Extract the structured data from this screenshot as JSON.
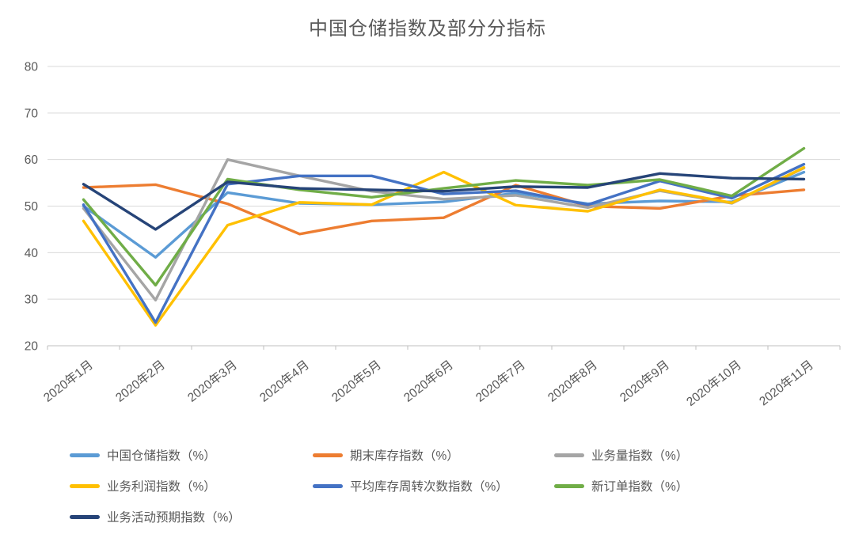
{
  "chart_data": {
    "type": "line",
    "title": "中国仓储指数及部分分指标",
    "categories": [
      "2020年1月",
      "2020年2月",
      "2020年3月",
      "2020年4月",
      "2020年5月",
      "2020年6月",
      "2020年7月",
      "2020年8月",
      "2020年9月",
      "2020年10月",
      "2020年11月"
    ],
    "series": [
      {
        "name": "中国仓储指数（%）",
        "color": "#5B9BD5",
        "values": [
          50.0,
          39.0,
          52.9,
          50.6,
          50.3,
          50.9,
          52.8,
          50.5,
          51.1,
          50.9,
          57.3
        ]
      },
      {
        "name": "期末库存指数（%）",
        "color": "#ED7D31",
        "values": [
          54.0,
          54.6,
          50.5,
          44.0,
          46.8,
          47.5,
          54.5,
          50.0,
          49.5,
          52.2,
          53.5
        ]
      },
      {
        "name": "业务量指数（%）",
        "color": "#A5A5A5",
        "values": [
          49.5,
          29.8,
          60.0,
          56.5,
          53.2,
          51.5,
          52.3,
          49.7,
          53.3,
          50.6,
          58.2
        ]
      },
      {
        "name": "业务利润指数（%）",
        "color": "#FFC000",
        "values": [
          46.8,
          24.4,
          45.9,
          50.8,
          50.3,
          57.3,
          50.2,
          48.9,
          53.5,
          50.7,
          58.3
        ]
      },
      {
        "name": "平均库存周转次数指数（%）",
        "color": "#4472C4",
        "values": [
          50.3,
          25.0,
          54.7,
          56.5,
          56.5,
          52.6,
          53.3,
          50.3,
          55.4,
          51.7,
          59.0
        ]
      },
      {
        "name": "新订单指数（%）",
        "color": "#70AD47",
        "values": [
          51.4,
          33.0,
          55.8,
          53.5,
          51.9,
          53.8,
          55.5,
          54.5,
          55.7,
          52.2,
          62.4
        ]
      },
      {
        "name": "业务活动预期指数（%）",
        "color": "#264478",
        "values": [
          54.7,
          45.0,
          55.2,
          53.8,
          53.5,
          53.2,
          54.2,
          54.0,
          57.0,
          56.0,
          55.8
        ]
      }
    ],
    "ylim": [
      20,
      80
    ],
    "ytick_step": 10,
    "ytick_labels": [
      "20",
      "30",
      "40",
      "50",
      "60",
      "70",
      "80"
    ],
    "grid": true,
    "legend_position": "bottom",
    "grid_color": "#D9D9D9",
    "axis_color": "#BFBFBF",
    "text_color": "#595959"
  }
}
